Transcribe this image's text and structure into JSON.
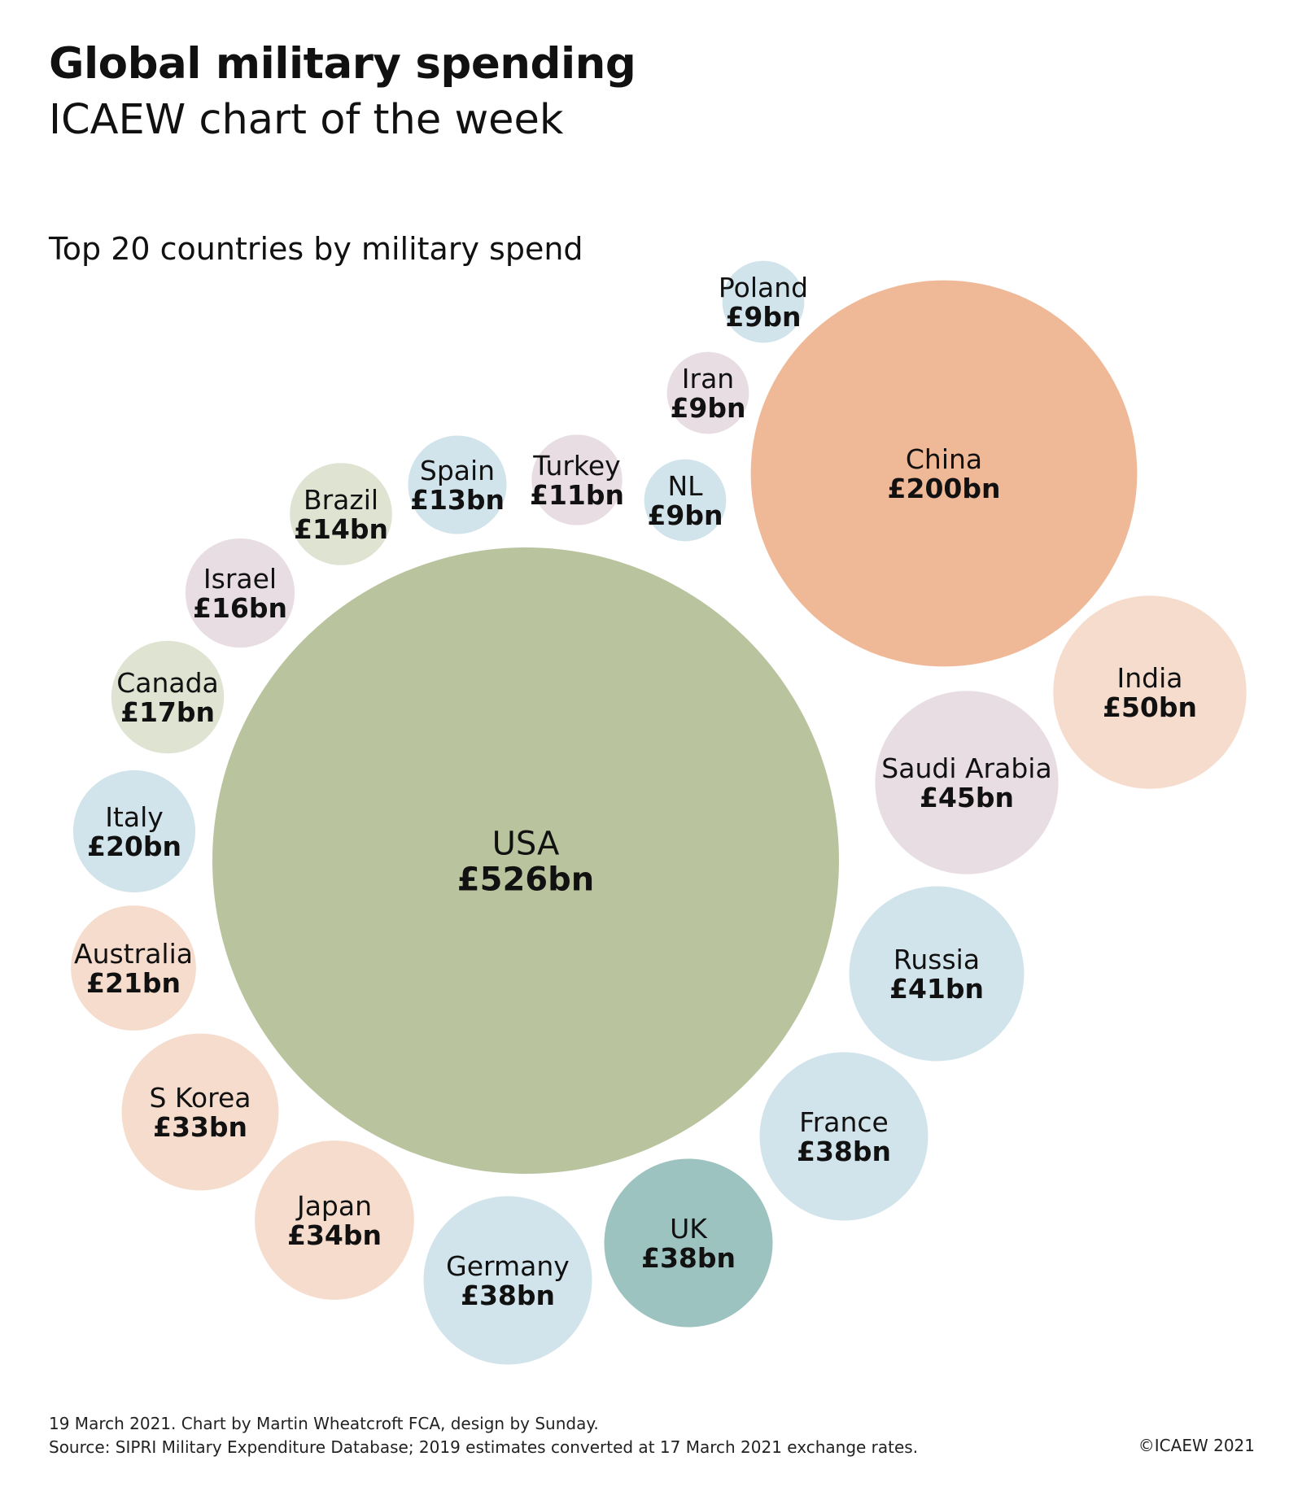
{
  "header": {
    "title": "Global military spending",
    "subtitle": "ICAEW chart of the week"
  },
  "chart_data": {
    "type": "bubble",
    "title": "Top 20 countries by military spend",
    "unit": "£bn",
    "items": [
      {
        "name": "USA",
        "label": "£526bn",
        "value": 526,
        "color": "#b9c49e"
      },
      {
        "name": "China",
        "label": "£200bn",
        "value": 200,
        "color": "#efb997"
      },
      {
        "name": "India",
        "label": "£50bn",
        "value": 50,
        "color": "#f5dccd"
      },
      {
        "name": "Saudi Arabia",
        "label": "£45bn",
        "value": 45,
        "color": "#e8dde2"
      },
      {
        "name": "Russia",
        "label": "£41bn",
        "value": 41,
        "color": "#d2e4eb"
      },
      {
        "name": "France",
        "label": "£38bn",
        "value": 38,
        "color": "#d2e4eb"
      },
      {
        "name": "UK",
        "label": "£38bn",
        "value": 38,
        "color": "#9cc3c0"
      },
      {
        "name": "Germany",
        "label": "£38bn",
        "value": 38,
        "color": "#d2e4eb"
      },
      {
        "name": "Japan",
        "label": "£34bn",
        "value": 34,
        "color": "#f5dccd"
      },
      {
        "name": "S Korea",
        "label": "£33bn",
        "value": 33,
        "color": "#f5dccd"
      },
      {
        "name": "Australia",
        "label": "£21bn",
        "value": 21,
        "color": "#f5dccd"
      },
      {
        "name": "Italy",
        "label": "£20bn",
        "value": 20,
        "color": "#d2e4eb"
      },
      {
        "name": "Canada",
        "label": "£17bn",
        "value": 17,
        "color": "#dfe3d2"
      },
      {
        "name": "Israel",
        "label": "£16bn",
        "value": 16,
        "color": "#e8dde2"
      },
      {
        "name": "Brazil",
        "label": "£14bn",
        "value": 14,
        "color": "#dfe3d2"
      },
      {
        "name": "Spain",
        "label": "£13bn",
        "value": 13,
        "color": "#d2e4eb"
      },
      {
        "name": "Turkey",
        "label": "£11bn",
        "value": 11,
        "color": "#e8dde2"
      },
      {
        "name": "NL",
        "label": "£9bn",
        "value": 9,
        "color": "#d2e4eb"
      },
      {
        "name": "Iran",
        "label": "£9bn",
        "value": 9,
        "color": "#e8dde2"
      },
      {
        "name": "Poland",
        "label": "£9bn",
        "value": 9,
        "color": "#d2e4eb"
      }
    ]
  },
  "footer": {
    "line1": "19 March 2021.   Chart by Martin Wheatcroft FCA, design by Sunday.",
    "line2": "Source: SIPRI Military Expenditure Database; 2019 estimates converted at 17 March 2021 exchange rates.",
    "copyright": "©ICAEW 2021"
  }
}
